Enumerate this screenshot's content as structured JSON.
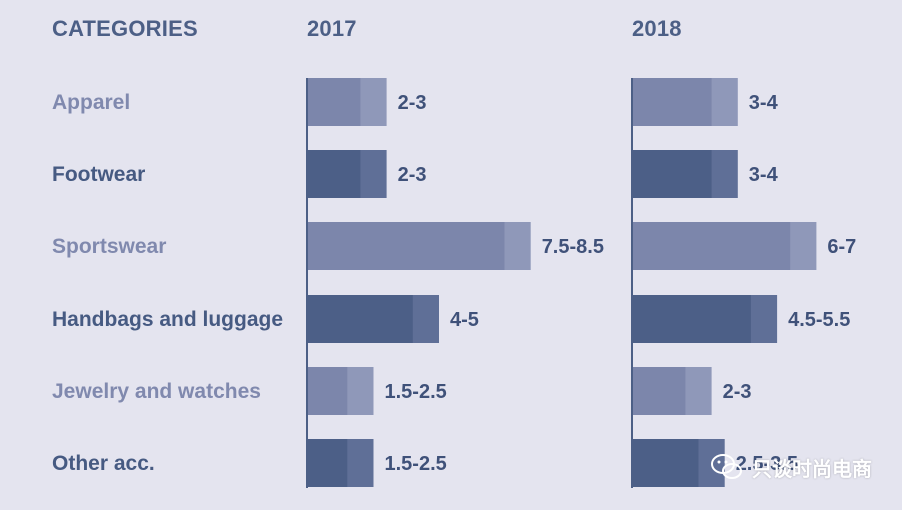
{
  "headers": {
    "categories": "CATEGORIES",
    "col1": "2017",
    "col2": "2018"
  },
  "colors": {
    "light_main": "#7c86ab",
    "light_ext": "#8f98b9",
    "dark_main": "#4c5f87",
    "dark_ext": "#5f6f97",
    "axis": "#4c5f86",
    "label_light": "#8089ae",
    "label_dark": "#465a82"
  },
  "chart_data": {
    "type": "bar",
    "orientation": "horizontal",
    "value_type": "range",
    "categories": [
      "Apparel",
      "Footwear",
      "Sportswear",
      "Handbags and luggage",
      "Jewelry and watches",
      "Other acc."
    ],
    "series": [
      {
        "name": "2017",
        "ranges": [
          [
            2,
            3
          ],
          [
            2,
            3
          ],
          [
            7.5,
            8.5
          ],
          [
            4,
            5
          ],
          [
            1.5,
            2.5
          ],
          [
            1.5,
            2.5
          ]
        ],
        "labels": [
          "2-3",
          "2-3",
          "7.5-8.5",
          "4-5",
          "1.5-2.5",
          "1.5-2.5"
        ]
      },
      {
        "name": "2018",
        "ranges": [
          [
            3,
            4
          ],
          [
            3,
            4
          ],
          [
            6,
            7
          ],
          [
            4.5,
            5.5
          ],
          [
            2,
            3
          ],
          [
            2.5,
            3.5
          ]
        ],
        "labels": [
          "3-4",
          "3-4",
          "6-7",
          "4.5-5.5",
          "2-3",
          "2.5-3.5"
        ]
      }
    ]
  },
  "watermark": {
    "text": "只谈时尚电商",
    "icon": "wechat-icon"
  }
}
